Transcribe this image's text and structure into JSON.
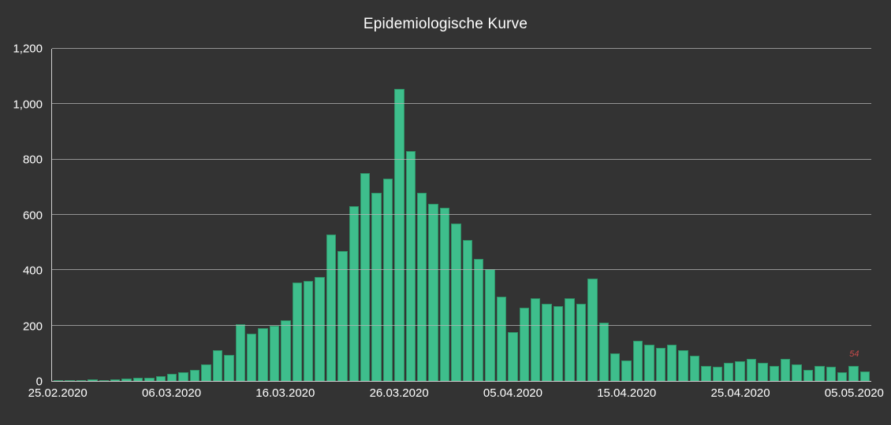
{
  "style": {
    "background": "#333333",
    "bar_fill": "#3ebe8c",
    "bar_border": "#2f9468",
    "grid_color": "#b5b5b5",
    "axis_color": "#d0d0d0",
    "text_color": "#ffffff",
    "annotation_color": "#c74b4b"
  },
  "chart_data": {
    "type": "bar",
    "title": "Epidemiologische Kurve",
    "xlabel": "",
    "ylabel": "",
    "ylim": [
      0,
      1200
    ],
    "grid": true,
    "legend": "none",
    "categories": [
      "25.02.2020",
      "26.02.2020",
      "27.02.2020",
      "28.02.2020",
      "29.02.2020",
      "01.03.2020",
      "02.03.2020",
      "03.03.2020",
      "04.03.2020",
      "05.03.2020",
      "06.03.2020",
      "07.03.2020",
      "08.03.2020",
      "09.03.2020",
      "10.03.2020",
      "11.03.2020",
      "12.03.2020",
      "13.03.2020",
      "14.03.2020",
      "15.03.2020",
      "16.03.2020",
      "17.03.2020",
      "18.03.2020",
      "19.03.2020",
      "20.03.2020",
      "21.03.2020",
      "22.03.2020",
      "23.03.2020",
      "24.03.2020",
      "25.03.2020",
      "26.03.2020",
      "27.03.2020",
      "28.03.2020",
      "29.03.2020",
      "30.03.2020",
      "31.03.2020",
      "01.04.2020",
      "02.04.2020",
      "03.04.2020",
      "04.04.2020",
      "05.04.2020",
      "06.04.2020",
      "07.04.2020",
      "08.04.2020",
      "09.04.2020",
      "10.04.2020",
      "11.04.2020",
      "12.04.2020",
      "13.04.2020",
      "14.04.2020",
      "15.04.2020",
      "16.04.2020",
      "17.04.2020",
      "18.04.2020",
      "19.04.2020",
      "20.04.2020",
      "21.04.2020",
      "22.04.2020",
      "23.04.2020",
      "24.04.2020",
      "25.04.2020",
      "26.04.2020",
      "27.04.2020",
      "28.04.2020",
      "29.04.2020",
      "30.04.2020",
      "01.05.2020",
      "02.05.2020",
      "03.05.2020",
      "04.05.2020",
      "05.05.2020",
      "06.05.2020"
    ],
    "values": [
      2,
      2,
      3,
      5,
      3,
      5,
      8,
      10,
      12,
      18,
      25,
      30,
      40,
      60,
      110,
      95,
      205,
      170,
      190,
      200,
      220,
      355,
      360,
      375,
      530,
      470,
      630,
      750,
      680,
      730,
      1055,
      830,
      680,
      640,
      625,
      570,
      510,
      440,
      405,
      305,
      175,
      265,
      300,
      280,
      270,
      300,
      280,
      370,
      210,
      100,
      75,
      145,
      130,
      120,
      130,
      110,
      90,
      55,
      50,
      65,
      70,
      80,
      65,
      55,
      80,
      60,
      40,
      55,
      50,
      30,
      54,
      35
    ],
    "y_ticks": [
      {
        "value": 0,
        "label": "0"
      },
      {
        "value": 200,
        "label": "200"
      },
      {
        "value": 400,
        "label": "400"
      },
      {
        "value": 600,
        "label": "600"
      },
      {
        "value": 800,
        "label": "800"
      },
      {
        "value": 1000,
        "label": "1,000"
      },
      {
        "value": 1200,
        "label": "1,200"
      }
    ],
    "x_ticks": [
      {
        "index": 0,
        "label": "25.02.2020"
      },
      {
        "index": 10,
        "label": "06.03.2020"
      },
      {
        "index": 20,
        "label": "16.03.2020"
      },
      {
        "index": 30,
        "label": "26.03.2020"
      },
      {
        "index": 40,
        "label": "05.04.2020"
      },
      {
        "index": 50,
        "label": "15.04.2020"
      },
      {
        "index": 60,
        "label": "25.04.2020"
      },
      {
        "index": 70,
        "label": "05.05.2020"
      }
    ],
    "annotations": [
      {
        "category": "05.05.2020",
        "text": "54",
        "color": "#c74b4b"
      }
    ]
  }
}
